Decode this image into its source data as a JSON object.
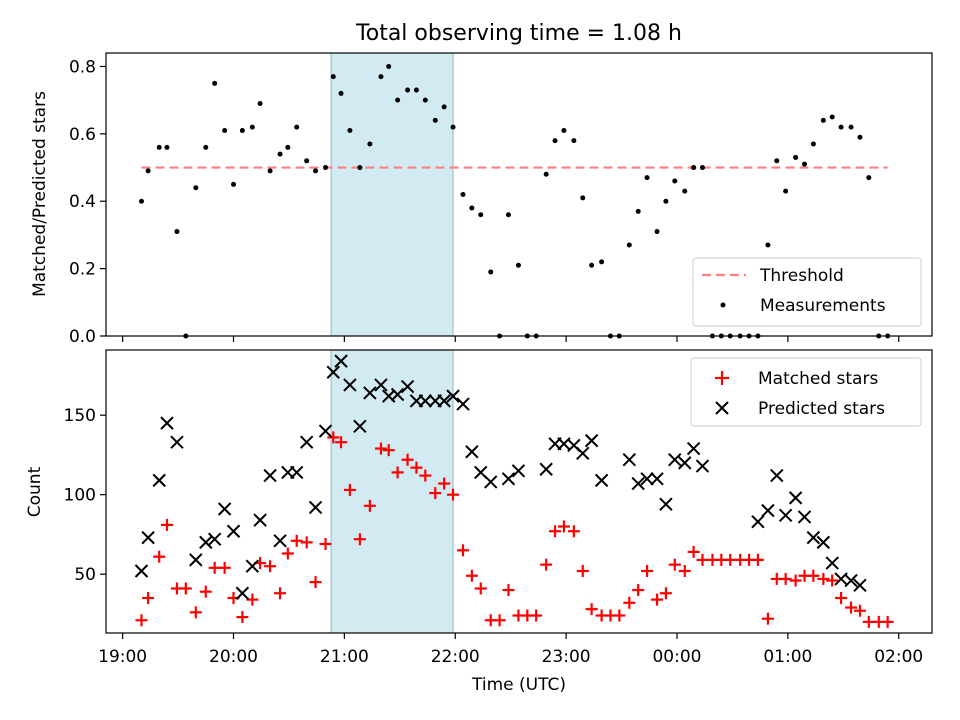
{
  "chart_data": [
    {
      "type": "scatter",
      "title": "Total observing time = 1.08 h",
      "xlabel": "",
      "ylabel": "Matched/Predicted stars",
      "xlim": [
        18.85,
        26.3
      ],
      "ylim": [
        0.0,
        0.84
      ],
      "yticks": [
        0.0,
        0.2,
        0.4,
        0.6,
        0.8
      ],
      "ytick_labels": [
        "0.0",
        "0.2",
        "0.4",
        "0.6",
        "0.8"
      ],
      "grid": false,
      "legend_position": "lower-right",
      "legend": [
        "Threshold",
        "Measurements"
      ],
      "highlight_span": [
        20.88,
        21.98
      ],
      "threshold": {
        "name": "Threshold",
        "value": 0.5,
        "x_range": [
          19.17,
          25.9
        ],
        "style": "dashed",
        "color": "#ff7f7f"
      },
      "series": [
        {
          "name": "Measurements",
          "marker": "dot",
          "color": "#000000",
          "x": [
            19.17,
            19.23,
            19.33,
            19.4,
            19.49,
            19.57,
            19.66,
            19.75,
            19.83,
            19.92,
            20.0,
            20.08,
            20.17,
            20.24,
            20.33,
            20.42,
            20.49,
            20.57,
            20.66,
            20.74,
            20.83,
            20.9,
            20.97,
            21.05,
            21.14,
            21.23,
            21.33,
            21.4,
            21.48,
            21.57,
            21.65,
            21.73,
            21.82,
            21.9,
            21.98,
            22.07,
            22.15,
            22.23,
            22.32,
            22.4,
            22.48,
            22.57,
            22.65,
            22.73,
            22.82,
            22.9,
            22.98,
            23.07,
            23.15,
            23.23,
            23.32,
            23.4,
            23.48,
            23.57,
            23.65,
            23.73,
            23.82,
            23.9,
            23.98,
            24.07,
            24.15,
            24.23,
            24.32,
            24.4,
            24.48,
            24.57,
            24.65,
            24.73,
            24.82,
            24.9,
            24.98,
            25.07,
            25.15,
            25.23,
            25.32,
            25.4,
            25.48,
            25.57,
            25.65,
            25.73,
            25.82,
            25.9
          ],
          "y": [
            0.4,
            0.49,
            0.56,
            0.56,
            0.31,
            0.0,
            0.44,
            0.56,
            0.75,
            0.61,
            0.45,
            0.61,
            0.62,
            0.69,
            0.49,
            0.54,
            0.56,
            0.62,
            0.52,
            0.49,
            0.5,
            0.77,
            0.72,
            0.61,
            0.5,
            0.57,
            0.77,
            0.8,
            0.7,
            0.73,
            0.73,
            0.7,
            0.64,
            0.68,
            0.62,
            0.42,
            0.38,
            0.36,
            0.19,
            0.0,
            0.36,
            0.21,
            0.0,
            0.0,
            0.48,
            0.58,
            0.61,
            0.58,
            0.41,
            0.21,
            0.22,
            0.0,
            0.0,
            0.27,
            0.37,
            0.47,
            0.31,
            0.4,
            0.46,
            0.43,
            0.5,
            0.5,
            0.0,
            0.0,
            0.0,
            0.0,
            0.0,
            0.0,
            0.27,
            0.52,
            0.43,
            0.53,
            0.51,
            0.57,
            0.64,
            0.65,
            0.62,
            0.62,
            0.59,
            0.47,
            0.0,
            0.0
          ]
        }
      ]
    },
    {
      "type": "scatter",
      "title": "",
      "xlabel": "Time (UTC)",
      "ylabel": "Count",
      "xlim": [
        18.85,
        26.3
      ],
      "ylim": [
        13,
        191
      ],
      "yticks": [
        50,
        100,
        150
      ],
      "ytick_labels": [
        "50",
        "100",
        "150"
      ],
      "xticks": [
        19,
        20,
        21,
        22,
        23,
        24,
        25,
        26
      ],
      "xtick_labels": [
        "19:00",
        "20:00",
        "21:00",
        "22:00",
        "23:00",
        "00:00",
        "01:00",
        "02:00"
      ],
      "grid": false,
      "legend_position": "upper-right",
      "legend": [
        "Matched stars",
        "Predicted stars"
      ],
      "highlight_span": [
        20.88,
        21.98
      ],
      "series": [
        {
          "name": "Matched stars",
          "marker": "plus",
          "color": "#ff0000",
          "x": [
            19.17,
            19.23,
            19.33,
            19.4,
            19.49,
            19.57,
            19.66,
            19.75,
            19.83,
            19.92,
            20.0,
            20.08,
            20.17,
            20.24,
            20.33,
            20.42,
            20.49,
            20.57,
            20.66,
            20.74,
            20.83,
            20.9,
            20.97,
            21.05,
            21.14,
            21.23,
            21.33,
            21.4,
            21.48,
            21.57,
            21.65,
            21.73,
            21.82,
            21.9,
            21.98,
            22.07,
            22.15,
            22.23,
            22.32,
            22.4,
            22.48,
            22.57,
            22.65,
            22.73,
            22.82,
            22.9,
            22.98,
            23.07,
            23.15,
            23.23,
            23.32,
            23.4,
            23.48,
            23.57,
            23.65,
            23.73,
            23.82,
            23.9,
            23.98,
            24.07,
            24.15,
            24.23,
            24.32,
            24.4,
            24.48,
            24.57,
            24.65,
            24.73,
            24.82,
            24.9,
            24.98,
            25.07,
            25.15,
            25.23,
            25.32,
            25.4,
            25.48,
            25.57,
            25.65,
            25.73,
            25.82,
            25.9
          ],
          "y": [
            21,
            35,
            61,
            81,
            41,
            41,
            26,
            39,
            54,
            54,
            35,
            23,
            34,
            57,
            55,
            38,
            63,
            71,
            70,
            45,
            69,
            136,
            133,
            103,
            72,
            93,
            129,
            128,
            114,
            122,
            117,
            112,
            101,
            107,
            100,
            65,
            49,
            41,
            21,
            21,
            40,
            24,
            24,
            24,
            56,
            77,
            80,
            77,
            52,
            28,
            24,
            24,
            24,
            32,
            40,
            52,
            34,
            38,
            56,
            52,
            64,
            59,
            59,
            59,
            59,
            59,
            59,
            59,
            22,
            47,
            47,
            46,
            49,
            49,
            47,
            46,
            35,
            29,
            27,
            20,
            20,
            20
          ]
        },
        {
          "name": "Predicted stars",
          "marker": "x",
          "color": "#000000",
          "x": [
            19.17,
            19.23,
            19.33,
            19.4,
            19.49,
            19.66,
            19.75,
            19.83,
            19.92,
            20.0,
            20.08,
            20.17,
            20.24,
            20.33,
            20.42,
            20.49,
            20.57,
            20.66,
            20.74,
            20.83,
            20.9,
            20.97,
            21.05,
            21.14,
            21.23,
            21.33,
            21.4,
            21.48,
            21.57,
            21.65,
            21.73,
            21.82,
            21.9,
            21.98,
            22.07,
            22.15,
            22.23,
            22.32,
            22.48,
            22.57,
            22.82,
            22.9,
            22.98,
            23.07,
            23.15,
            23.23,
            23.32,
            23.57,
            23.65,
            23.73,
            23.82,
            23.9,
            23.98,
            24.07,
            24.15,
            24.23,
            24.73,
            24.82,
            24.9,
            24.98,
            25.07,
            25.15,
            25.23,
            25.32,
            25.4,
            25.48,
            25.57,
            25.65
          ],
          "y": [
            52,
            73,
            109,
            145,
            133,
            59,
            70,
            72,
            91,
            77,
            38,
            55,
            84,
            112,
            71,
            114,
            114,
            133,
            92,
            140,
            177,
            184,
            169,
            143,
            164,
            169,
            162,
            163,
            168,
            159,
            159,
            159,
            159,
            162,
            157,
            127,
            114,
            108,
            110,
            115,
            116,
            132,
            132,
            131,
            126,
            134,
            109,
            122,
            107,
            110,
            110,
            94,
            122,
            120,
            129,
            118,
            83,
            90,
            112,
            87,
            98,
            86,
            73,
            70,
            57,
            47,
            46,
            43
          ]
        }
      ]
    }
  ]
}
